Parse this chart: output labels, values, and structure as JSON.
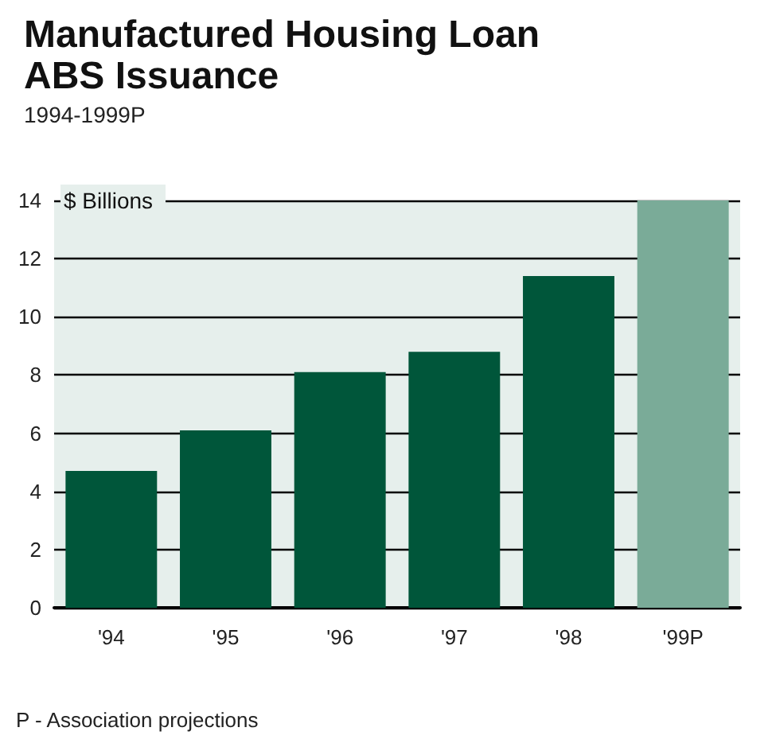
{
  "chart_data": {
    "type": "bar",
    "title": "Manufactured Housing Loan\nABS Issuance",
    "subtitle": "1994-1999P",
    "ylabel": "$ Billions",
    "categories": [
      "'94",
      "'95",
      "'96",
      "'97",
      "'98",
      "'99P"
    ],
    "values": [
      4.7,
      6.1,
      8.1,
      8.8,
      11.4,
      14.0
    ],
    "colors": [
      "#00563a",
      "#00563a",
      "#00563a",
      "#00563a",
      "#00563a",
      "#7aab98"
    ],
    "ylim": [
      0,
      14
    ],
    "yticks": [
      0,
      2,
      4,
      6,
      8,
      10,
      12,
      14
    ],
    "grid": "y",
    "annotations": [
      "P - Association projections"
    ]
  }
}
